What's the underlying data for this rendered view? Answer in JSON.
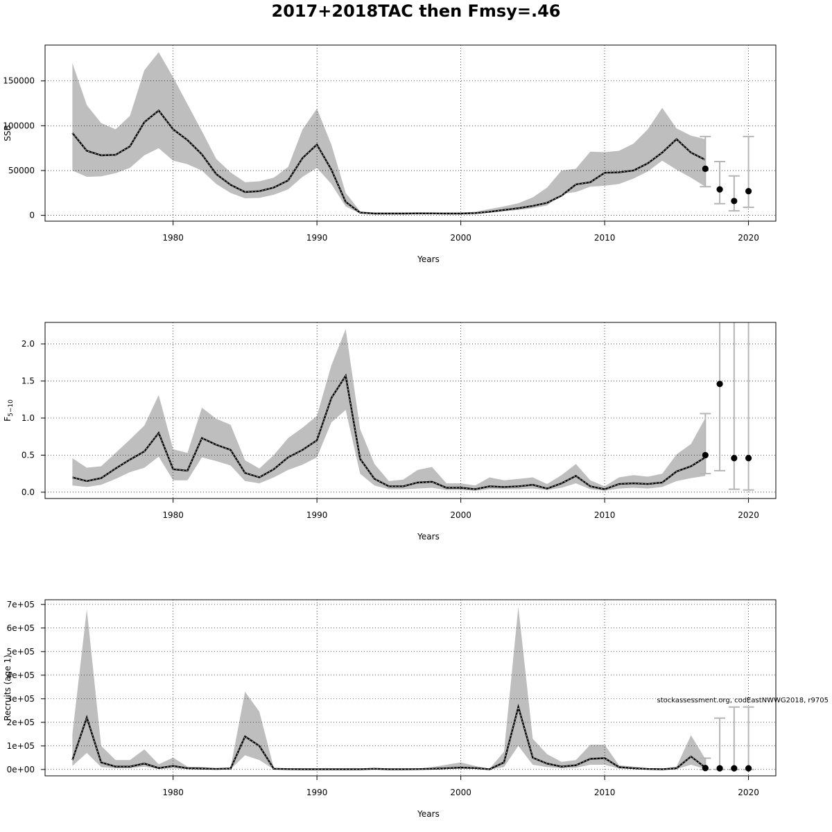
{
  "title": "2017+2018TAC then Fmsy=.46",
  "chart_data": [
    {
      "type": "line",
      "ylabel": "SSB",
      "xlabel": "Years",
      "xlim": [
        1973,
        2020
      ],
      "ylim": [
        0,
        180000
      ],
      "xticks": [
        1980,
        1990,
        2000,
        2010,
        2020
      ],
      "yticks": [
        0,
        50000,
        100000,
        150000
      ],
      "ytick_labels": [
        "0",
        "50000",
        "100000",
        "150000"
      ],
      "grid": true,
      "x": [
        1973,
        1974,
        1975,
        1976,
        1977,
        1978,
        1979,
        1980,
        1981,
        1982,
        1983,
        1984,
        1985,
        1986,
        1987,
        1988,
        1989,
        1990,
        1991,
        1992,
        1993,
        1994,
        1995,
        1996,
        1997,
        1998,
        1999,
        2000,
        2001,
        2002,
        2003,
        2004,
        2005,
        2006,
        2007,
        2008,
        2009,
        2010,
        2011,
        2012,
        2013,
        2014,
        2015,
        2016,
        2017
      ],
      "estimate": [
        92000,
        72000,
        67000,
        67500,
        77000,
        104000,
        117000,
        96000,
        84000,
        68000,
        46000,
        34000,
        26000,
        27000,
        31000,
        39000,
        64000,
        79000,
        51000,
        15000,
        3000,
        2000,
        2000,
        2000,
        2200,
        2200,
        2000,
        2000,
        2500,
        4000,
        6000,
        8000,
        10500,
        14000,
        22000,
        34500,
        37000,
        47500,
        48000,
        50000,
        58000,
        70000,
        85000,
        70000,
        62000
      ],
      "upper": [
        170000,
        123000,
        103000,
        96000,
        111000,
        162000,
        182000,
        154000,
        124000,
        94000,
        63000,
        48000,
        37000,
        38000,
        42000,
        54000,
        96000,
        119000,
        79000,
        25000,
        4500,
        3000,
        3000,
        3000,
        3300,
        3200,
        3000,
        3000,
        4000,
        7000,
        10000,
        13500,
        20000,
        31000,
        50000,
        52000,
        71000,
        70500,
        72000,
        80000,
        96000,
        120000,
        97000,
        89000,
        85000
      ],
      "lower": [
        50000,
        43000,
        43500,
        47000,
        53000,
        67000,
        75000,
        61000,
        57000,
        50000,
        35000,
        25000,
        19000,
        19500,
        23000,
        29000,
        43000,
        53000,
        35000,
        10000,
        2000,
        1500,
        1500,
        1500,
        1600,
        1600,
        1500,
        1500,
        1800,
        3000,
        4500,
        6000,
        8000,
        11000,
        24000,
        26000,
        32000,
        33000,
        35000,
        41000,
        49000,
        61000,
        51000,
        42000,
        32000
      ],
      "projection_years": [
        2017,
        2018,
        2019,
        2020
      ],
      "projection_values": [
        52000,
        29000,
        16000,
        27000
      ],
      "projection_upper": [
        88000,
        60000,
        44000,
        88000
      ],
      "projection_lower": [
        32000,
        13000,
        5000,
        9000
      ]
    },
    {
      "type": "line",
      "ylabel": "F",
      "ylabel_sub": "5−10",
      "xlabel": "Years",
      "xlim": [
        1973,
        2020
      ],
      "ylim": [
        0,
        2.3
      ],
      "xticks": [
        1980,
        1990,
        2000,
        2010,
        2020
      ],
      "yticks": [
        0,
        0.5,
        1.0,
        1.5,
        2.0
      ],
      "ytick_labels": [
        "0.0",
        "0.5",
        "1.0",
        "1.5",
        "2.0"
      ],
      "grid": true,
      "x": [
        1973,
        1974,
        1975,
        1976,
        1977,
        1978,
        1979,
        1980,
        1981,
        1982,
        1983,
        1984,
        1985,
        1986,
        1987,
        1988,
        1989,
        1990,
        1991,
        1992,
        1993,
        1994,
        1995,
        1996,
        1997,
        1998,
        1999,
        2000,
        2001,
        2002,
        2003,
        2004,
        2005,
        2006,
        2007,
        2008,
        2009,
        2010,
        2011,
        2012,
        2013,
        2014,
        2015,
        2016,
        2017
      ],
      "estimate": [
        0.2,
        0.15,
        0.19,
        0.32,
        0.44,
        0.55,
        0.8,
        0.31,
        0.29,
        0.73,
        0.64,
        0.57,
        0.26,
        0.2,
        0.31,
        0.47,
        0.57,
        0.7,
        1.27,
        1.57,
        0.45,
        0.18,
        0.08,
        0.08,
        0.13,
        0.14,
        0.06,
        0.06,
        0.04,
        0.08,
        0.07,
        0.08,
        0.1,
        0.05,
        0.12,
        0.22,
        0.08,
        0.04,
        0.11,
        0.12,
        0.11,
        0.13,
        0.28,
        0.35,
        0.47
      ],
      "upper": [
        0.46,
        0.33,
        0.35,
        0.53,
        0.71,
        0.9,
        1.31,
        0.58,
        0.53,
        1.14,
        0.99,
        0.91,
        0.43,
        0.32,
        0.5,
        0.73,
        0.87,
        1.03,
        1.71,
        2.2,
        0.85,
        0.38,
        0.15,
        0.17,
        0.3,
        0.34,
        0.12,
        0.12,
        0.09,
        0.2,
        0.16,
        0.18,
        0.2,
        0.11,
        0.23,
        0.38,
        0.16,
        0.08,
        0.2,
        0.23,
        0.21,
        0.25,
        0.51,
        0.65,
        1.0
      ],
      "lower": [
        0.09,
        0.07,
        0.1,
        0.18,
        0.27,
        0.33,
        0.48,
        0.16,
        0.16,
        0.47,
        0.42,
        0.36,
        0.15,
        0.12,
        0.2,
        0.3,
        0.37,
        0.47,
        0.94,
        1.11,
        0.25,
        0.09,
        0.04,
        0.04,
        0.05,
        0.06,
        0.03,
        0.03,
        0.02,
        0.04,
        0.04,
        0.04,
        0.05,
        0.03,
        0.06,
        0.12,
        0.04,
        0.02,
        0.05,
        0.06,
        0.05,
        0.07,
        0.15,
        0.19,
        0.22
      ],
      "projection_years": [
        2017,
        2018,
        2019,
        2020
      ],
      "projection_values": [
        0.5,
        1.46,
        0.46,
        0.46
      ],
      "projection_upper": [
        1.06,
        2.3,
        2.3,
        2.3
      ],
      "projection_lower": [
        0.25,
        0.29,
        0.04,
        0.03
      ]
    },
    {
      "type": "line",
      "ylabel": "Recruits (age 1)",
      "xlabel": "Years",
      "xlim": [
        1973,
        2020
      ],
      "ylim": [
        0,
        700000
      ],
      "xticks": [
        1980,
        1990,
        2000,
        2010,
        2020
      ],
      "yticks": [
        0,
        100000,
        200000,
        300000,
        400000,
        500000,
        600000,
        700000
      ],
      "ytick_labels": [
        "0e+00",
        "1e+05",
        "2e+05",
        "3e+05",
        "4e+05",
        "5e+05",
        "6e+05",
        "7e+05"
      ],
      "grid": true,
      "x": [
        1973,
        1974,
        1975,
        1976,
        1977,
        1978,
        1979,
        1980,
        1981,
        1982,
        1983,
        1984,
        1985,
        1986,
        1987,
        1988,
        1989,
        1990,
        1991,
        1992,
        1993,
        1994,
        1995,
        1996,
        1997,
        1998,
        1999,
        2000,
        2001,
        2002,
        2003,
        2004,
        2005,
        2006,
        2007,
        2008,
        2009,
        2010,
        2011,
        2012,
        2013,
        2014,
        2015,
        2016,
        2017
      ],
      "estimate": [
        40000,
        220000,
        30000,
        12000,
        12000,
        25000,
        6000,
        15000,
        5000,
        4000,
        2000,
        4000,
        140000,
        100000,
        3000,
        1500,
        1000,
        1000,
        1000,
        1000,
        1000,
        3000,
        1000,
        1000,
        1500,
        3000,
        5000,
        8000,
        6000,
        1000,
        30000,
        265000,
        50000,
        25000,
        12000,
        18000,
        45000,
        48000,
        10000,
        5000,
        2000,
        1000,
        5000,
        55000,
        8000
      ],
      "upper": [
        150000,
        680000,
        100000,
        40000,
        40000,
        85000,
        22000,
        50000,
        12000,
        10000,
        5000,
        8000,
        330000,
        245000,
        6000,
        3000,
        2000,
        2000,
        2000,
        2000,
        2000,
        6000,
        2000,
        2000,
        3500,
        10000,
        20000,
        30000,
        15000,
        3000,
        75000,
        690000,
        130000,
        65000,
        32000,
        40000,
        105000,
        105000,
        18000,
        12000,
        5000,
        2500,
        12000,
        145000,
        45000
      ],
      "lower": [
        15000,
        70000,
        10000,
        5000,
        5000,
        12000,
        2000,
        5000,
        1500,
        1500,
        500,
        1500,
        60000,
        40000,
        1000,
        500,
        300,
        300,
        300,
        300,
        300,
        1000,
        300,
        300,
        500,
        1000,
        2000,
        3000,
        2000,
        300,
        10000,
        100000,
        20000,
        10000,
        5000,
        7000,
        20000,
        20000,
        4000,
        2000,
        700,
        300,
        1500,
        20000,
        2000
      ],
      "projection_years": [
        2017,
        2018,
        2019,
        2020
      ],
      "projection_values": [
        6000,
        5000,
        5000,
        5000
      ],
      "projection_upper": [
        48000,
        218000,
        265000,
        265000
      ],
      "projection_lower": [
        0,
        0,
        0,
        0
      ],
      "annotation": "stockassessment.org, codEastNWWG2018, r9705"
    }
  ]
}
